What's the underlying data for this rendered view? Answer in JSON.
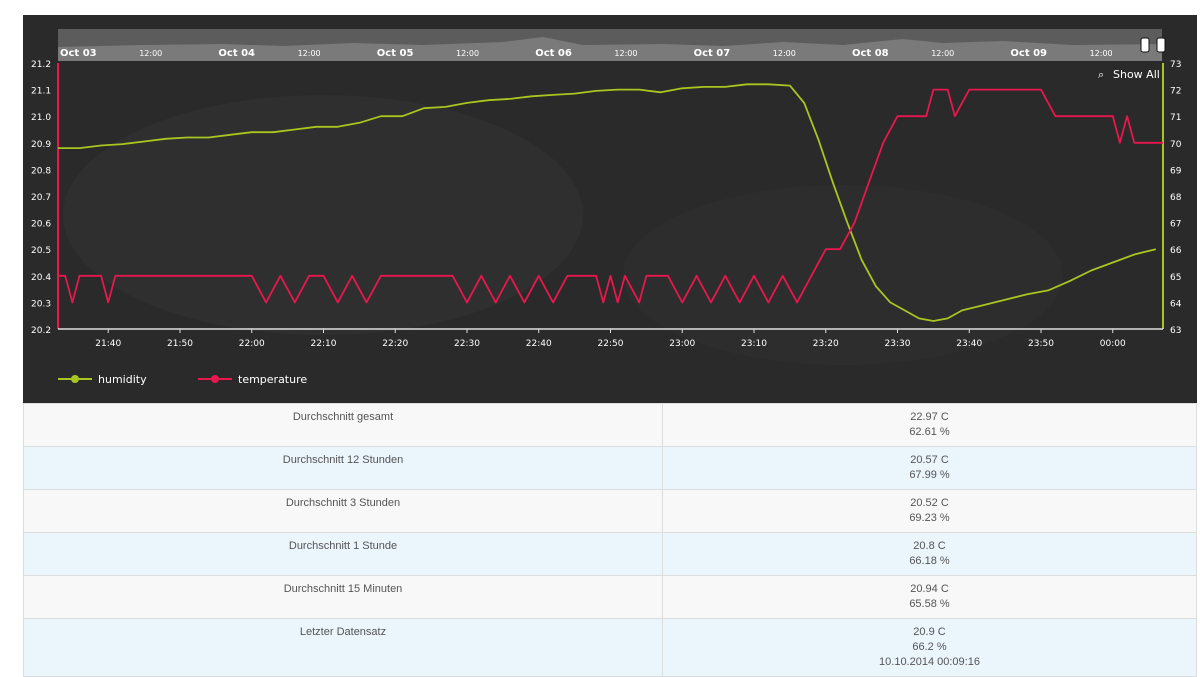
{
  "chart_data": {
    "type": "line",
    "navigator": {
      "labels": [
        "Oct 03",
        "12:00",
        "Oct 04",
        "12:00",
        "Oct 05",
        "12:00",
        "Oct 06",
        "12:00",
        "Oct 07",
        "12:00",
        "Oct 08",
        "12:00",
        "Oct 09",
        "12:00"
      ]
    },
    "show_all_label": "Show All",
    "x_ticks": [
      "21:40",
      "21:50",
      "22:00",
      "22:10",
      "22:20",
      "22:30",
      "22:40",
      "22:50",
      "23:00",
      "23:10",
      "23:20",
      "23:30",
      "23:40",
      "23:50",
      "00:00"
    ],
    "x_range": [
      "21:33",
      "00:07"
    ],
    "y_left": {
      "ticks": [
        "20.2",
        "20.3",
        "20.4",
        "20.5",
        "20.6",
        "20.7",
        "20.8",
        "20.9",
        "21.0",
        "21.1",
        "21.2"
      ],
      "range": [
        20.2,
        21.2
      ],
      "color": "#e8174e"
    },
    "y_right": {
      "ticks": [
        "63",
        "64",
        "65",
        "66",
        "67",
        "68",
        "69",
        "70",
        "71",
        "72",
        "73"
      ],
      "range": [
        63,
        73
      ],
      "color": "#a8c61f"
    },
    "legend_position": "bottom-left",
    "series": [
      {
        "name": "humidity",
        "axis": "right",
        "color": "#a8c61f",
        "points": [
          [
            "21:33",
            69.8
          ],
          [
            "21:36",
            69.8
          ],
          [
            "21:39",
            69.9
          ],
          [
            "21:42",
            69.95
          ],
          [
            "21:45",
            70.05
          ],
          [
            "21:48",
            70.15
          ],
          [
            "21:51",
            70.2
          ],
          [
            "21:54",
            70.2
          ],
          [
            "21:57",
            70.3
          ],
          [
            "22:00",
            70.4
          ],
          [
            "22:03",
            70.4
          ],
          [
            "22:06",
            70.5
          ],
          [
            "22:09",
            70.6
          ],
          [
            "22:12",
            70.6
          ],
          [
            "22:15",
            70.75
          ],
          [
            "22:18",
            71.0
          ],
          [
            "22:21",
            71.0
          ],
          [
            "22:24",
            71.3
          ],
          [
            "22:27",
            71.35
          ],
          [
            "22:30",
            71.5
          ],
          [
            "22:33",
            71.6
          ],
          [
            "22:36",
            71.65
          ],
          [
            "22:39",
            71.75
          ],
          [
            "22:42",
            71.8
          ],
          [
            "22:45",
            71.85
          ],
          [
            "22:48",
            71.95
          ],
          [
            "22:51",
            72.0
          ],
          [
            "22:54",
            72.0
          ],
          [
            "22:57",
            71.9
          ],
          [
            "23:00",
            72.05
          ],
          [
            "23:03",
            72.1
          ],
          [
            "23:06",
            72.1
          ],
          [
            "23:09",
            72.2
          ],
          [
            "23:12",
            72.2
          ],
          [
            "23:15",
            72.15
          ],
          [
            "23:17",
            71.5
          ],
          [
            "23:19",
            70.1
          ],
          [
            "23:21",
            68.5
          ],
          [
            "23:23",
            67.0
          ],
          [
            "23:25",
            65.6
          ],
          [
            "23:27",
            64.6
          ],
          [
            "23:29",
            64.0
          ],
          [
            "23:31",
            63.7
          ],
          [
            "23:33",
            63.4
          ],
          [
            "23:35",
            63.3
          ],
          [
            "23:37",
            63.4
          ],
          [
            "23:39",
            63.7
          ],
          [
            "23:42",
            63.9
          ],
          [
            "23:45",
            64.1
          ],
          [
            "23:48",
            64.3
          ],
          [
            "23:51",
            64.45
          ],
          [
            "23:54",
            64.8
          ],
          [
            "23:57",
            65.2
          ],
          [
            "00:00",
            65.5
          ],
          [
            "00:03",
            65.8
          ],
          [
            "00:06",
            66.0
          ]
        ]
      },
      {
        "name": "temperature",
        "axis": "left",
        "color": "#e8174e",
        "points": [
          [
            "21:33",
            20.4
          ],
          [
            "21:34",
            20.4
          ],
          [
            "21:35",
            20.3
          ],
          [
            "21:36",
            20.4
          ],
          [
            "21:39",
            20.4
          ],
          [
            "21:40",
            20.3
          ],
          [
            "21:41",
            20.4
          ],
          [
            "22:00",
            20.4
          ],
          [
            "22:02",
            20.3
          ],
          [
            "22:04",
            20.4
          ],
          [
            "22:06",
            20.3
          ],
          [
            "22:08",
            20.4
          ],
          [
            "22:10",
            20.4
          ],
          [
            "22:12",
            20.3
          ],
          [
            "22:14",
            20.4
          ],
          [
            "22:16",
            20.3
          ],
          [
            "22:18",
            20.4
          ],
          [
            "22:28",
            20.4
          ],
          [
            "22:30",
            20.3
          ],
          [
            "22:32",
            20.4
          ],
          [
            "22:34",
            20.3
          ],
          [
            "22:36",
            20.4
          ],
          [
            "22:38",
            20.3
          ],
          [
            "22:40",
            20.4
          ],
          [
            "22:42",
            20.3
          ],
          [
            "22:44",
            20.4
          ],
          [
            "22:48",
            20.4
          ],
          [
            "22:49",
            20.3
          ],
          [
            "22:50",
            20.4
          ],
          [
            "22:51",
            20.3
          ],
          [
            "22:52",
            20.4
          ],
          [
            "22:54",
            20.3
          ],
          [
            "22:55",
            20.4
          ],
          [
            "22:58",
            20.4
          ],
          [
            "23:00",
            20.3
          ],
          [
            "23:02",
            20.4
          ],
          [
            "23:04",
            20.3
          ],
          [
            "23:06",
            20.4
          ],
          [
            "23:08",
            20.3
          ],
          [
            "23:10",
            20.4
          ],
          [
            "23:12",
            20.3
          ],
          [
            "23:14",
            20.4
          ],
          [
            "23:16",
            20.3
          ],
          [
            "23:18",
            20.4
          ],
          [
            "23:20",
            20.5
          ],
          [
            "23:22",
            20.5
          ],
          [
            "23:24",
            20.6
          ],
          [
            "23:26",
            20.75
          ],
          [
            "23:28",
            20.9
          ],
          [
            "23:30",
            21.0
          ],
          [
            "23:32",
            21.0
          ],
          [
            "23:34",
            21.0
          ],
          [
            "23:35",
            21.1
          ],
          [
            "23:37",
            21.1
          ],
          [
            "23:38",
            21.0
          ],
          [
            "23:40",
            21.1
          ],
          [
            "23:45",
            21.1
          ],
          [
            "23:50",
            21.1
          ],
          [
            "23:52",
            21.0
          ],
          [
            "23:58",
            21.0
          ],
          [
            "00:00",
            21.0
          ],
          [
            "00:01",
            20.9
          ],
          [
            "00:02",
            21.0
          ],
          [
            "00:03",
            20.9
          ],
          [
            "00:07",
            20.9
          ]
        ]
      }
    ]
  },
  "stats": {
    "rows": [
      {
        "label": "Durchschnitt gesamt",
        "values": [
          "22.97 C",
          "62.61 %"
        ]
      },
      {
        "label": "Durchschnitt 12 Stunden",
        "values": [
          "20.57 C",
          "67.99 %"
        ]
      },
      {
        "label": "Durchschnitt 3 Stunden",
        "values": [
          "20.52 C",
          "69.23 %"
        ]
      },
      {
        "label": "Durchschnitt 1 Stunde",
        "values": [
          "20.8 C",
          "66.18 %"
        ]
      },
      {
        "label": "Durchschnitt 15 Minuten",
        "values": [
          "20.94 C",
          "65.58 %"
        ]
      },
      {
        "label": "Letzter Datensatz",
        "values": [
          "20.9 C",
          "66.2 %",
          "10.10.2014 00:09:16"
        ]
      }
    ]
  }
}
